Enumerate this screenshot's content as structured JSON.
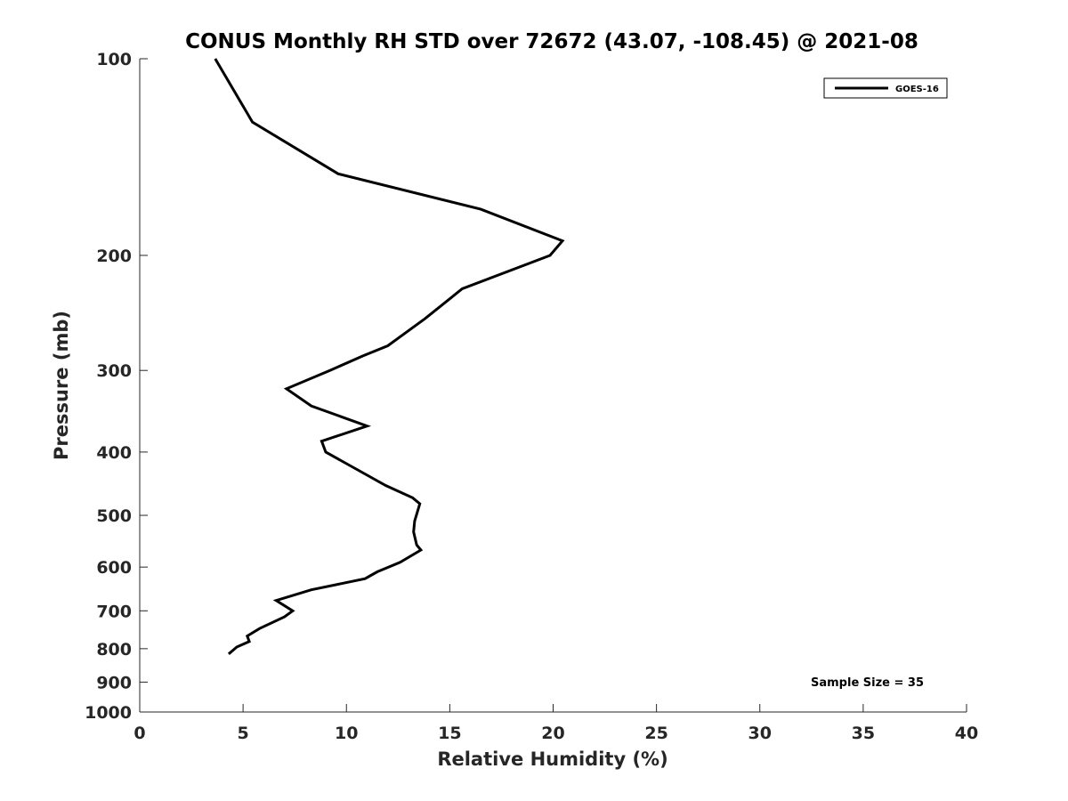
{
  "chart_data": {
    "type": "line",
    "title": "CONUS Monthly RH STD over 72672 (43.07, -108.45) @ 2021-08",
    "xlabel": "Relative Humidity (%)",
    "ylabel": "Pressure (mb)",
    "xlim": [
      0,
      40
    ],
    "ylim": [
      100,
      1000
    ],
    "y_scale": "log",
    "y_reversed": true,
    "grid": false,
    "legend_position": "top-right",
    "x_ticks": [
      0,
      5,
      10,
      15,
      20,
      25,
      30,
      35,
      40
    ],
    "y_ticks": [
      100,
      200,
      300,
      400,
      500,
      600,
      700,
      800,
      900,
      1000
    ],
    "annotation": "Sample Size = 35",
    "series": [
      {
        "name": "GOES-16",
        "color": "#000000",
        "points": [
          [
            3.65,
            100
          ],
          [
            5.45,
            125
          ],
          [
            9.6,
            150
          ],
          [
            16.5,
            170
          ],
          [
            20.45,
            190
          ],
          [
            19.85,
            200
          ],
          [
            15.6,
            225
          ],
          [
            13.8,
            250
          ],
          [
            12.0,
            275
          ],
          [
            10.8,
            285
          ],
          [
            9.2,
            300
          ],
          [
            7.1,
            320
          ],
          [
            8.3,
            340
          ],
          [
            11.0,
            365
          ],
          [
            8.8,
            385
          ],
          [
            9.0,
            400
          ],
          [
            10.2,
            420
          ],
          [
            11.9,
            450
          ],
          [
            13.2,
            470
          ],
          [
            13.55,
            480
          ],
          [
            13.3,
            510
          ],
          [
            13.25,
            530
          ],
          [
            13.4,
            555
          ],
          [
            13.6,
            565
          ],
          [
            12.6,
            590
          ],
          [
            11.5,
            610
          ],
          [
            11.3,
            615
          ],
          [
            10.9,
            625
          ],
          [
            8.3,
            650
          ],
          [
            6.6,
            675
          ],
          [
            7.4,
            700
          ],
          [
            7.0,
            715
          ],
          [
            5.8,
            745
          ],
          [
            5.2,
            765
          ],
          [
            5.3,
            780
          ],
          [
            4.7,
            795
          ],
          [
            4.3,
            815
          ]
        ]
      }
    ]
  }
}
